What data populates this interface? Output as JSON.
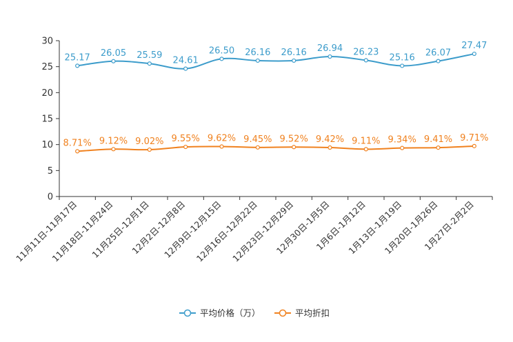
{
  "chart_data": {
    "type": "line",
    "categories": [
      "11月11日-11月17日",
      "11月18日-11月24日",
      "11月25日-12月1日",
      "12月2日-12月8日",
      "12月9日-12月15日",
      "12月16日-12月22日",
      "12月23日-12月29日",
      "12月30日-1月5日",
      "1月6日-1月12日",
      "1月13日-1月19日",
      "1月20日-1月26日",
      "1月27日-2月2日"
    ],
    "ylim": [
      0,
      30
    ],
    "yticks": [
      "0",
      "5",
      "10",
      "15",
      "20",
      "25",
      "30"
    ],
    "series": [
      {
        "name": "平均价格（万）",
        "color": "#3c9ccb",
        "values": [
          25.17,
          26.05,
          25.59,
          24.61,
          26.5,
          26.16,
          26.16,
          26.94,
          26.23,
          25.16,
          26.07,
          27.47
        ],
        "labels": [
          "25.17",
          "26.05",
          "25.59",
          "24.61",
          "26.50",
          "26.16",
          "26.16",
          "26.94",
          "26.23",
          "25.16",
          "26.07",
          "27.47"
        ]
      },
      {
        "name": "平均折扣",
        "color": "#f0811e",
        "values": [
          8.71,
          9.12,
          9.02,
          9.55,
          9.62,
          9.45,
          9.52,
          9.42,
          9.11,
          9.34,
          9.41,
          9.71
        ],
        "labels": [
          "8.71%",
          "9.12%",
          "9.02%",
          "9.55%",
          "9.62%",
          "9.45%",
          "9.52%",
          "9.42%",
          "9.11%",
          "9.34%",
          "9.41%",
          "9.71%"
        ]
      }
    ]
  }
}
